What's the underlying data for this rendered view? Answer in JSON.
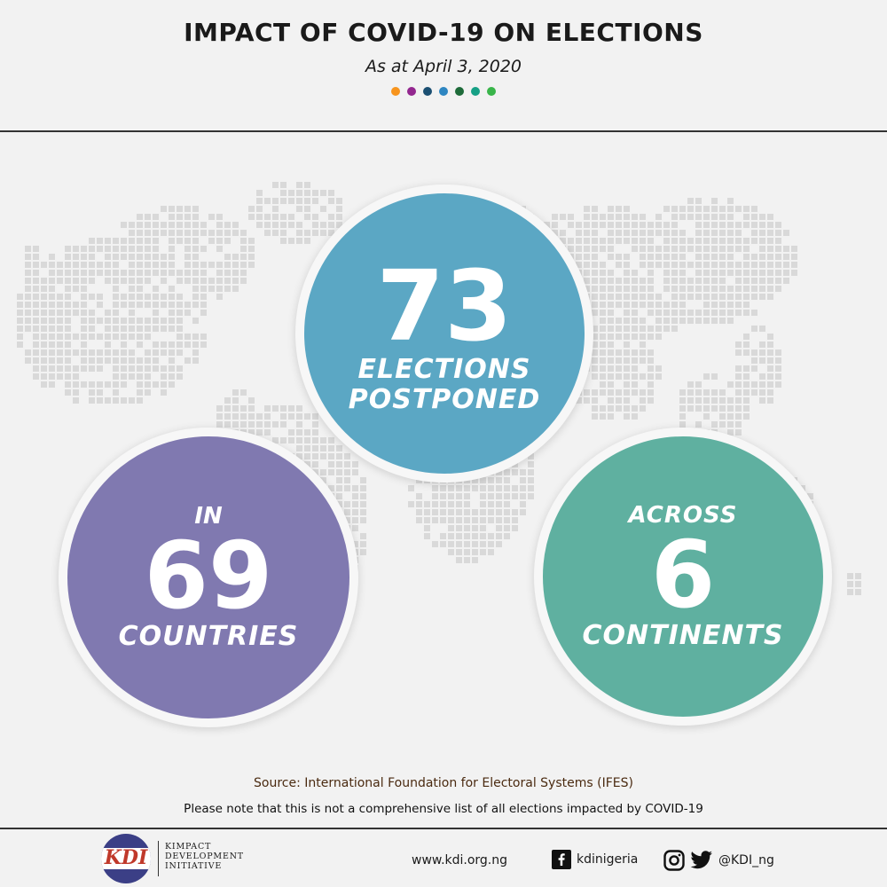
{
  "header": {
    "title": "IMPACT OF COVID-19 ON ELECTIONS",
    "date": "As at April 3, 2020",
    "dot_colors": [
      "#f7941d",
      "#93278f",
      "#1b4f72",
      "#2e86c1",
      "#1e6b3a",
      "#16a085",
      "#39b54a"
    ]
  },
  "stats": {
    "elections": {
      "value": "73",
      "label_line1": "ELECTIONS",
      "label_line2": "POSTPONED",
      "color": "#5ba7c4"
    },
    "countries": {
      "prefix": "IN",
      "value": "69",
      "label": "COUNTRIES",
      "color": "#8079b0"
    },
    "continents": {
      "prefix": "ACROSS",
      "value": "6",
      "label": "CONTINENTS",
      "color": "#5fb0a0"
    }
  },
  "footer": {
    "source": "Source: International Foundation for Electoral Systems (IFES)",
    "note": "Please note that this is not a comprehensive list of all elections impacted by COVID-19",
    "logo_text": "KDI",
    "org_line1": "KIMPACT",
    "org_line2": "DEVELOPMENT",
    "org_line3": "INITIATIVE",
    "website": "www.kdi.org.ng",
    "facebook": "kdinigeria",
    "twitter": "@KDI_ng"
  },
  "icons": {
    "facebook": "facebook-icon",
    "instagram": "instagram-icon",
    "twitter": "twitter-icon",
    "map": "world-map-dots"
  }
}
